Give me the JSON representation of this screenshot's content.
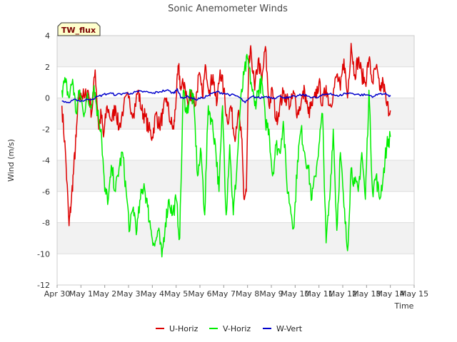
{
  "chart_data": {
    "type": "line",
    "title": "Sonic Anemometer Winds",
    "xlabel": "Time",
    "ylabel": "Wind (m/s)",
    "ylim": [
      -12,
      4
    ],
    "xlim": [
      0,
      15
    ],
    "yticks": [
      -12,
      -10,
      -8,
      -6,
      -4,
      -2,
      0,
      2,
      4
    ],
    "xticks": [
      {
        "v": 0,
        "label": "Apr 30"
      },
      {
        "v": 1,
        "label": "May 1"
      },
      {
        "v": 2,
        "label": "May 2"
      },
      {
        "v": 3,
        "label": "May 3"
      },
      {
        "v": 4,
        "label": "May 4"
      },
      {
        "v": 5,
        "label": "May 5"
      },
      {
        "v": 6,
        "label": "May 6"
      },
      {
        "v": 7,
        "label": "May 7"
      },
      {
        "v": 8,
        "label": "May 8"
      },
      {
        "v": 9,
        "label": "May 9"
      },
      {
        "v": 10,
        "label": "May 10"
      },
      {
        "v": 11,
        "label": "May 11"
      },
      {
        "v": 12,
        "label": "May 12"
      },
      {
        "v": 13,
        "label": "May 13"
      },
      {
        "v": 14,
        "label": "May 14"
      },
      {
        "v": 15,
        "label": "May 15"
      }
    ],
    "annotation": "TW_flux",
    "series": [
      {
        "name": "U-Horiz",
        "color": "#dd0000",
        "x": [
          0.2,
          0.35,
          0.5,
          0.6,
          0.7,
          0.8,
          0.9,
          1.0,
          1.15,
          1.3,
          1.45,
          1.6,
          1.75,
          1.85,
          1.95,
          2.1,
          2.3,
          2.45,
          2.6,
          2.8,
          3.0,
          3.2,
          3.4,
          3.55,
          3.7,
          3.85,
          4.0,
          4.15,
          4.3,
          4.45,
          4.6,
          4.75,
          4.9,
          5.0,
          5.1,
          5.2,
          5.35,
          5.5,
          5.65,
          5.8,
          5.95,
          6.1,
          6.25,
          6.4,
          6.55,
          6.7,
          6.85,
          7.0,
          7.15,
          7.3,
          7.45,
          7.6,
          7.75,
          7.85,
          7.95,
          8.05,
          8.15,
          8.3,
          8.45,
          8.6,
          8.75,
          8.9,
          9.05,
          9.2,
          9.35,
          9.5,
          9.65,
          9.8,
          9.95,
          10.1,
          10.25,
          10.4,
          10.55,
          10.7,
          10.85,
          11.0,
          11.15,
          11.3,
          11.45,
          11.6,
          11.75,
          11.9,
          12.05,
          12.2,
          12.35,
          12.5,
          12.65,
          12.8,
          12.95,
          13.1,
          13.25,
          13.4,
          13.55,
          13.7,
          13.85,
          14.0
        ],
        "values": [
          -0.5,
          -3.5,
          -8.2,
          -6.5,
          -4.5,
          -2.5,
          0.0,
          0.3,
          0.0,
          0.5,
          -1.0,
          1.8,
          -2.0,
          -1.0,
          -2.5,
          -0.5,
          -1.5,
          -0.5,
          -2.0,
          -0.5,
          0.0,
          -1.0,
          0.5,
          -0.8,
          -1.2,
          -2.0,
          -2.5,
          -1.0,
          -1.8,
          -1.0,
          0.0,
          -1.5,
          -2.0,
          0.0,
          2.0,
          0.5,
          1.0,
          -0.5,
          0.5,
          -0.5,
          1.5,
          0.2,
          2.0,
          0.5,
          1.5,
          -0.5,
          1.8,
          0.5,
          -1.5,
          -0.5,
          -2.5,
          -1.0,
          -2.5,
          -6.5,
          -6.0,
          2.0,
          3.0,
          0.5,
          2.5,
          1.0,
          3.3,
          -0.5,
          0.5,
          -1.5,
          -0.5,
          0.3,
          0.0,
          -0.5,
          0.3,
          -1.0,
          -0.3,
          0.5,
          -1.0,
          -0.5,
          0.0,
          1.0,
          -0.5,
          0.8,
          -0.5,
          0.3,
          1.5,
          0.5,
          2.5,
          0.0,
          3.5,
          1.5,
          2.5,
          1.5,
          1.0,
          2.5,
          1.0,
          2.0,
          0.5,
          1.0,
          -0.5,
          -0.8
        ]
      },
      {
        "name": "V-Horiz",
        "color": "#00ee00",
        "x": [
          0.2,
          0.35,
          0.5,
          0.65,
          0.8,
          0.95,
          1.1,
          1.25,
          1.4,
          1.55,
          1.7,
          1.85,
          2.0,
          2.15,
          2.3,
          2.45,
          2.6,
          2.75,
          2.9,
          3.05,
          3.2,
          3.35,
          3.5,
          3.65,
          3.8,
          3.95,
          4.1,
          4.25,
          4.4,
          4.55,
          4.7,
          4.85,
          5.0,
          5.15,
          5.3,
          5.45,
          5.6,
          5.75,
          5.9,
          6.05,
          6.2,
          6.35,
          6.5,
          6.65,
          6.8,
          6.95,
          7.1,
          7.25,
          7.4,
          7.55,
          7.7,
          7.85,
          8.0,
          8.15,
          8.3,
          8.45,
          8.6,
          8.75,
          8.9,
          9.05,
          9.2,
          9.35,
          9.5,
          9.65,
          9.8,
          9.95,
          10.1,
          10.25,
          10.4,
          10.55,
          10.7,
          10.85,
          11.0,
          11.15,
          11.3,
          11.45,
          11.6,
          11.75,
          11.9,
          12.05,
          12.2,
          12.35,
          12.5,
          12.65,
          12.8,
          12.95,
          13.1,
          13.25,
          13.4,
          13.55,
          13.7,
          13.85,
          14.0
        ],
        "values": [
          0.5,
          1.0,
          0.0,
          1.2,
          -1.0,
          0.5,
          -1.0,
          0.0,
          -0.5,
          0.8,
          -1.0,
          -2.0,
          -6.0,
          -6.5,
          -4.5,
          -6.0,
          -4.5,
          -3.5,
          -6.0,
          -8.5,
          -7.0,
          -8.5,
          -6.5,
          -5.5,
          -7.0,
          -8.5,
          -9.5,
          -8.5,
          -10.2,
          -8.0,
          -6.5,
          -7.5,
          -6.5,
          -9.0,
          0.5,
          -1.0,
          0.5,
          -0.5,
          -5.0,
          -3.5,
          -7.5,
          -0.5,
          -1.5,
          -3.0,
          -6.0,
          -0.5,
          -7.5,
          -3.0,
          -7.5,
          -4.5,
          -0.5,
          1.5,
          2.5,
          1.0,
          -0.5,
          0.5,
          1.0,
          -1.5,
          -2.0,
          -5.0,
          -3.0,
          -3.5,
          -1.5,
          -5.5,
          -7.0,
          -8.3,
          -4.0,
          -2.0,
          -3.5,
          -4.5,
          -6.5,
          -5.0,
          -3.0,
          -1.0,
          -9.3,
          -6.5,
          -2.0,
          -8.5,
          -3.5,
          -7.0,
          -9.8,
          -4.5,
          -5.5,
          -6.0,
          -3.5,
          -6.5,
          0.5,
          -6.0,
          -5.0,
          -6.5,
          -5.0,
          -3.0,
          -2.5
        ]
      },
      {
        "name": "W-Vert",
        "color": "#0000cc",
        "x": [
          0.2,
          0.5,
          0.8,
          1.0,
          1.3,
          1.6,
          1.9,
          2.2,
          2.5,
          2.8,
          3.1,
          3.4,
          3.7,
          4.0,
          4.3,
          4.6,
          4.9,
          5.05,
          5.2,
          5.5,
          5.8,
          6.1,
          6.4,
          6.7,
          7.0,
          7.3,
          7.6,
          7.9,
          8.2,
          8.5,
          8.8,
          9.1,
          9.4,
          9.7,
          10.0,
          10.3,
          10.6,
          10.9,
          11.2,
          11.5,
          11.8,
          12.1,
          12.4,
          12.7,
          13.0,
          13.3,
          13.6,
          13.9,
          14.0
        ],
        "values": [
          -0.2,
          -0.3,
          -0.1,
          -0.2,
          -0.1,
          0.0,
          0.2,
          0.3,
          0.2,
          0.3,
          0.3,
          0.4,
          0.4,
          0.3,
          0.4,
          0.5,
          0.3,
          0.6,
          0.0,
          0.1,
          -0.1,
          0.0,
          0.2,
          0.4,
          0.3,
          0.2,
          0.1,
          -0.3,
          0.1,
          0.0,
          0.1,
          0.0,
          0.1,
          0.0,
          0.1,
          0.2,
          0.1,
          0.0,
          0.2,
          0.3,
          0.1,
          0.3,
          0.3,
          0.2,
          0.2,
          0.1,
          0.3,
          0.2,
          0.1
        ]
      }
    ]
  }
}
